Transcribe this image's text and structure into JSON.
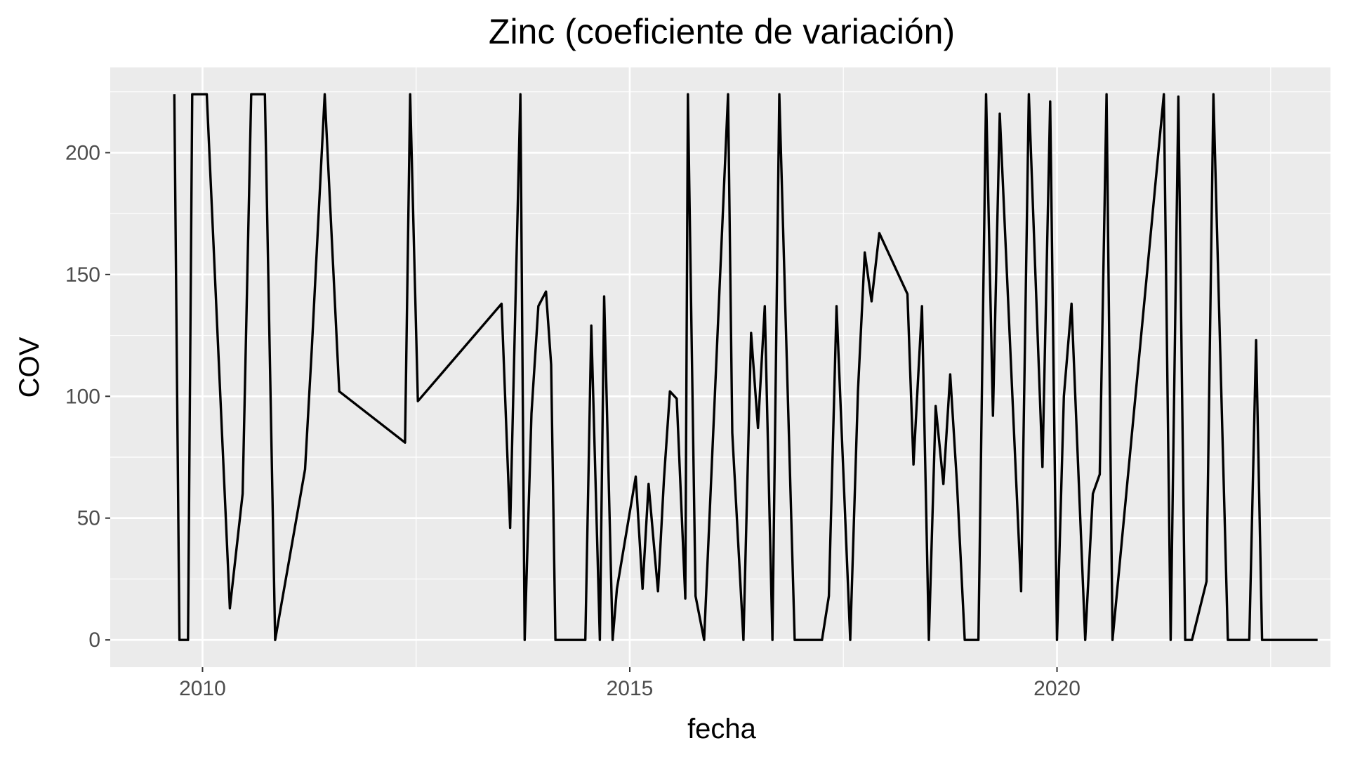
{
  "chart_data": {
    "type": "line",
    "title": "Zinc (coeficiente de variación)",
    "xlabel": "fecha",
    "ylabel": "COV",
    "x_ticks": [
      "2010",
      "2015",
      "2020"
    ],
    "y_ticks": [
      "0",
      "50",
      "100",
      "150",
      "200"
    ],
    "xlim": [
      2008.92,
      2023.2
    ],
    "ylim": [
      -11.2,
      235
    ],
    "grid": true,
    "legend": "none",
    "colors": {
      "panel": "#ebebeb",
      "grid": "#ffffff",
      "line": "#000000",
      "tick_text": "#4d4d4d"
    },
    "series": [
      {
        "x": [
          2009.67,
          2009.73,
          2009.83,
          2009.88,
          2010.05,
          2010.32,
          2010.47,
          2010.57,
          2010.73,
          2010.85,
          2011.2,
          2011.28,
          2011.43,
          2011.6,
          2012.37,
          2012.43,
          2012.52,
          2013.5,
          2013.6,
          2013.72,
          2013.77,
          2013.85,
          2013.93,
          2014.02,
          2014.08,
          2014.13,
          2014.48,
          2014.55,
          2014.65,
          2014.7,
          2014.8,
          2014.85,
          2015.07,
          2015.15,
          2015.22,
          2015.33,
          2015.4,
          2015.47,
          2015.55,
          2015.65,
          2015.68,
          2015.77,
          2015.87,
          2016.15,
          2016.2,
          2016.33,
          2016.42,
          2016.5,
          2016.58,
          2016.67,
          2016.75,
          2016.93,
          2017.0,
          2017.25,
          2017.33,
          2017.42,
          2017.58,
          2017.67,
          2017.75,
          2017.83,
          2017.92,
          2018.25,
          2018.32,
          2018.42,
          2018.5,
          2018.58,
          2018.67,
          2018.75,
          2018.83,
          2018.92,
          2019.08,
          2019.17,
          2019.25,
          2019.33,
          2019.58,
          2019.67,
          2019.83,
          2019.92,
          2020.0,
          2020.08,
          2020.17,
          2020.33,
          2020.42,
          2020.5,
          2020.58,
          2020.65,
          2021.25,
          2021.33,
          2021.42,
          2021.5,
          2021.58,
          2021.75,
          2021.83,
          2022.0,
          2022.08,
          2022.17,
          2022.25,
          2022.33,
          2022.4,
          2022.5,
          2022.67,
          2022.75,
          2022.83,
          2022.92,
          2023.0,
          2023.05
        ],
        "y": [
          224,
          0,
          0,
          224,
          224,
          13,
          60,
          224,
          224,
          0,
          70,
          120,
          224,
          102,
          81,
          224,
          98,
          138,
          46,
          224,
          0,
          93,
          137,
          143,
          113,
          0,
          0,
          129,
          0,
          141,
          0,
          21,
          67,
          21,
          64,
          20,
          66,
          102,
          99,
          17,
          224,
          18,
          0,
          224,
          85,
          0,
          126,
          87,
          137,
          0,
          224,
          0,
          0,
          0,
          18,
          137,
          0,
          102,
          159,
          139,
          167,
          142,
          72,
          137,
          0,
          96,
          64,
          109,
          64,
          0,
          0,
          224,
          92,
          216,
          20,
          224,
          71,
          221,
          0,
          100,
          138,
          0,
          60,
          68,
          224,
          0,
          224,
          0,
          223,
          0,
          0,
          24,
          224,
          0,
          0,
          0,
          0,
          123,
          0,
          0,
          0,
          0,
          0,
          0,
          0,
          0
        ]
      }
    ]
  }
}
